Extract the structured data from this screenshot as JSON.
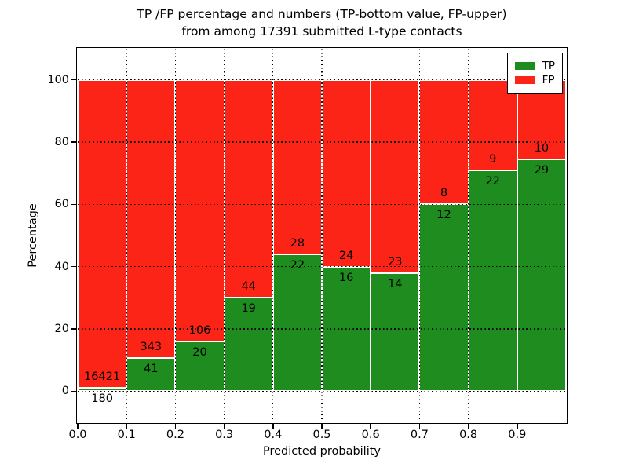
{
  "chart_data": {
    "type": "bar",
    "stacked": true,
    "title_line1": "TP /FP percentage and numbers (TP-bottom value, FP-upper)",
    "title_line2": "from among 17391 submitted L-type contacts",
    "total_submitted": 17391,
    "xlabel": "Predicted probability",
    "ylabel": "Percentage",
    "xlim": [
      0.0,
      1.0
    ],
    "ylim": [
      -10,
      110
    ],
    "grid": "dotted black, drawn over bars",
    "legend_position": "upper right",
    "x_tick_labels": [
      "0.0",
      "0.1",
      "0.2",
      "0.3",
      "0.4",
      "0.5",
      "0.6",
      "0.7",
      "0.8",
      "0.9"
    ],
    "y_tick_values": [
      0,
      20,
      40,
      60,
      80,
      100
    ],
    "y_tick_labels": [
      "0",
      "20",
      "40",
      "60",
      "80",
      "100"
    ],
    "colors": {
      "tp": "#1e8c1e",
      "fp": "#fb2417"
    },
    "legend": {
      "tp_label": "TP",
      "fp_label": "FP"
    },
    "bins": [
      {
        "range": "0.0-0.1",
        "tp": 180,
        "fp": 16421,
        "tp_pct": 1.08,
        "fp_pct": 98.92
      },
      {
        "range": "0.1-0.2",
        "tp": 41,
        "fp": 343,
        "tp_pct": 10.68,
        "fp_pct": 89.32
      },
      {
        "range": "0.2-0.3",
        "tp": 20,
        "fp": 106,
        "tp_pct": 15.87,
        "fp_pct": 84.13
      },
      {
        "range": "0.3-0.4",
        "tp": 19,
        "fp": 44,
        "tp_pct": 30.16,
        "fp_pct": 69.84
      },
      {
        "range": "0.4-0.5",
        "tp": 22,
        "fp": 28,
        "tp_pct": 44.0,
        "fp_pct": 56.0
      },
      {
        "range": "0.5-0.6",
        "tp": 16,
        "fp": 24,
        "tp_pct": 40.0,
        "fp_pct": 60.0
      },
      {
        "range": "0.6-0.7",
        "tp": 14,
        "fp": 23,
        "tp_pct": 37.84,
        "fp_pct": 62.16
      },
      {
        "range": "0.7-0.8",
        "tp": 12,
        "fp": 8,
        "tp_pct": 60.0,
        "fp_pct": 40.0
      },
      {
        "range": "0.8-0.9",
        "tp": 22,
        "fp": 9,
        "tp_pct": 70.97,
        "fp_pct": 29.03
      },
      {
        "range": "0.9-1.0",
        "tp": 29,
        "fp": 10,
        "tp_pct": 74.36,
        "fp_pct": 25.64
      }
    ]
  }
}
